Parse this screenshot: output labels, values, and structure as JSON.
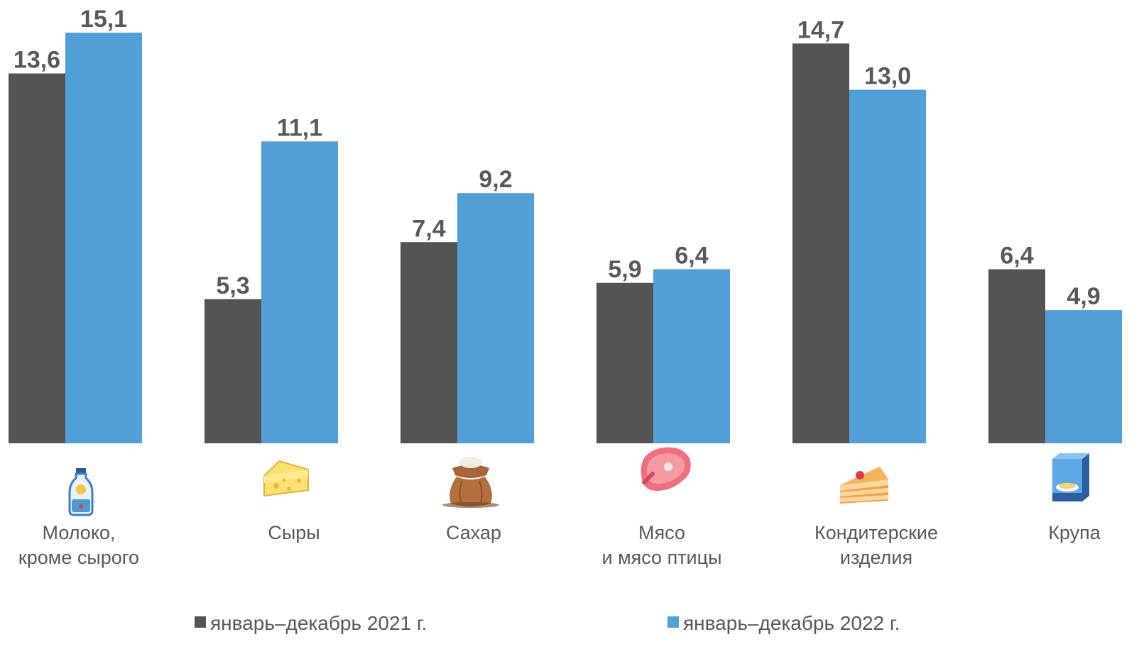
{
  "chart_data": {
    "type": "bar",
    "title": "",
    "xlabel": "",
    "ylabel": "",
    "categories": [
      [
        "Молоко,",
        "кроме сырого"
      ],
      [
        "Сыры"
      ],
      [
        "Сахар"
      ],
      [
        "Мясо",
        "и мясо птицы"
      ],
      [
        "Кондитерские",
        "изделия"
      ],
      [
        "Крупа"
      ]
    ],
    "icons": [
      "milk-bottle-icon",
      "cheese-icon",
      "sugar-sack-icon",
      "meat-steak-icon",
      "cake-slice-icon",
      "cereal-box-icon"
    ],
    "series": [
      {
        "name": "январь–декабрь 2021 г.",
        "color": "#545454",
        "values": [
          13.6,
          5.3,
          7.4,
          5.9,
          14.7,
          6.4
        ],
        "labels": [
          "13,6",
          "5,3",
          "7,4",
          "5,9",
          "14,7",
          "6,4"
        ]
      },
      {
        "name": "январь–декабрь 2022 г.",
        "color": "#529ED6",
        "values": [
          15.1,
          11.1,
          9.2,
          6.4,
          13.0,
          4.9
        ],
        "labels": [
          "15,1",
          "11,1",
          "9,2",
          "6,4",
          "13,0",
          "4,9"
        ]
      }
    ],
    "ylim": [
      0,
      15.1
    ],
    "grid": false,
    "legend_position": "bottom"
  }
}
